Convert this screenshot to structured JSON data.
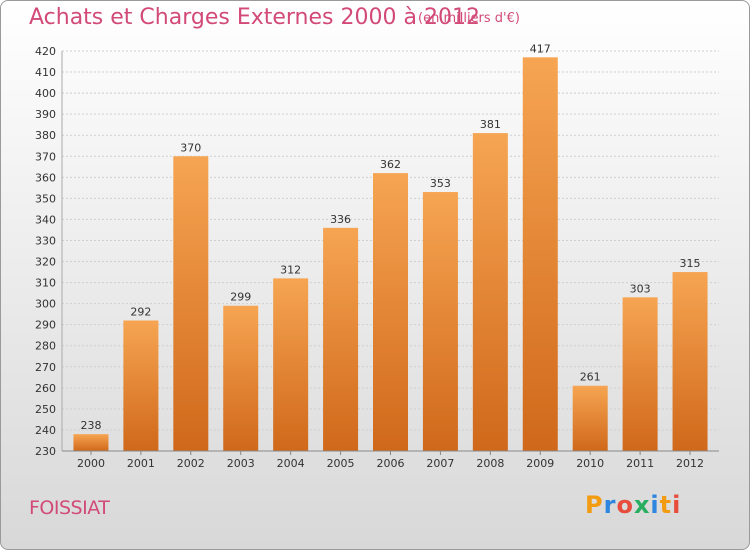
{
  "chart_data": {
    "type": "bar",
    "title": "Achats et Charges Externes 2000 à 2012",
    "subtitle": "(en milliers d'€)",
    "categories": [
      "2000",
      "2001",
      "2002",
      "2003",
      "2004",
      "2005",
      "2006",
      "2007",
      "2008",
      "2009",
      "2010",
      "2011",
      "2012"
    ],
    "values": [
      238,
      292,
      370,
      299,
      312,
      336,
      362,
      353,
      381,
      417,
      261,
      303,
      315
    ],
    "ylim": [
      230,
      420
    ],
    "ytick_step": 10,
    "grid": true,
    "bar_color": "#f0903a",
    "bar_color_dark": "#d46a18"
  },
  "footer": {
    "commune": "FOISSIAT",
    "brand_letters": [
      "P",
      "r",
      "o",
      "x",
      "i",
      "t",
      "i"
    ],
    "brand_colors": [
      "#f39c12",
      "#2e86de",
      "#e74c3c",
      "#27ae60",
      "#2e86de",
      "#f39c12",
      "#e74c3c"
    ]
  }
}
